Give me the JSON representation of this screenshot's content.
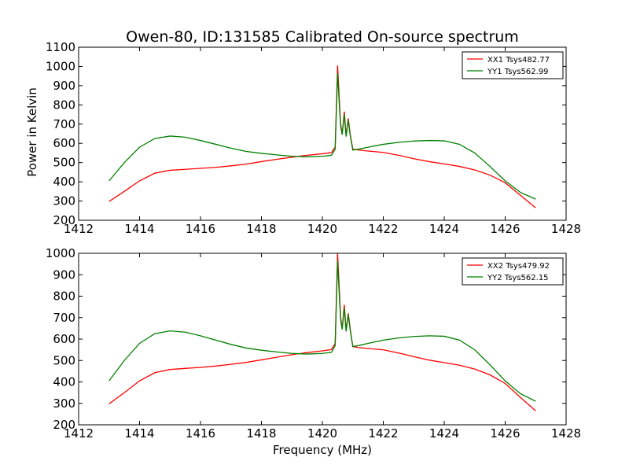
{
  "figure": {
    "title": "Owen-80, ID:131585 Calibrated On-source spectrum",
    "xlabel": "Frequency (MHz)",
    "ylabel": "Power in Kelvin"
  },
  "chart_data": [
    {
      "type": "line",
      "title": "Owen-80, ID:131585 Calibrated On-source spectrum",
      "xlabel": "",
      "ylabel": "Power in Kelvin",
      "xlim": [
        1412,
        1428
      ],
      "ylim": [
        200,
        1100
      ],
      "xticks": [
        1412,
        1414,
        1416,
        1418,
        1420,
        1422,
        1424,
        1426,
        1428
      ],
      "yticks": [
        200,
        300,
        400,
        500,
        600,
        700,
        800,
        900,
        1000,
        1100
      ],
      "grid": false,
      "legend": "top-right",
      "series": [
        {
          "name": "XX1 Tsys482.77",
          "color": "#ff0000",
          "points": [
            [
              1413.0,
              298
            ],
            [
              1413.5,
              350
            ],
            [
              1414.0,
              405
            ],
            [
              1414.5,
              445
            ],
            [
              1415.0,
              460
            ],
            [
              1415.5,
              465
            ],
            [
              1416.0,
              470
            ],
            [
              1416.5,
              475
            ],
            [
              1417.0,
              483
            ],
            [
              1417.5,
              492
            ],
            [
              1418.0,
              505
            ],
            [
              1418.5,
              517
            ],
            [
              1419.0,
              528
            ],
            [
              1419.5,
              538
            ],
            [
              1420.0,
              546
            ],
            [
              1420.3,
              552
            ],
            [
              1420.42,
              580
            ],
            [
              1420.5,
              1005
            ],
            [
              1420.55,
              850
            ],
            [
              1420.6,
              700
            ],
            [
              1420.65,
              650
            ],
            [
              1420.72,
              765
            ],
            [
              1420.78,
              640
            ],
            [
              1420.85,
              730
            ],
            [
              1420.92,
              640
            ],
            [
              1421.0,
              570
            ],
            [
              1421.2,
              565
            ],
            [
              1421.5,
              560
            ],
            [
              1422.0,
              553
            ],
            [
              1422.5,
              538
            ],
            [
              1423.0,
              520
            ],
            [
              1423.5,
              505
            ],
            [
              1424.0,
              493
            ],
            [
              1424.5,
              480
            ],
            [
              1425.0,
              462
            ],
            [
              1425.5,
              435
            ],
            [
              1426.0,
              395
            ],
            [
              1426.5,
              330
            ],
            [
              1427.0,
              265
            ]
          ]
        },
        {
          "name": "YY1 Tsys562.99",
          "color": "#008000",
          "points": [
            [
              1413.0,
              405
            ],
            [
              1413.5,
              500
            ],
            [
              1414.0,
              580
            ],
            [
              1414.5,
              625
            ],
            [
              1415.0,
              638
            ],
            [
              1415.5,
              632
            ],
            [
              1416.0,
              615
            ],
            [
              1416.5,
              595
            ],
            [
              1417.0,
              575
            ],
            [
              1417.5,
              558
            ],
            [
              1418.0,
              548
            ],
            [
              1418.5,
              540
            ],
            [
              1419.0,
              533
            ],
            [
              1419.5,
              530
            ],
            [
              1420.0,
              533
            ],
            [
              1420.3,
              538
            ],
            [
              1420.42,
              570
            ],
            [
              1420.5,
              965
            ],
            [
              1420.55,
              820
            ],
            [
              1420.6,
              690
            ],
            [
              1420.65,
              645
            ],
            [
              1420.72,
              750
            ],
            [
              1420.78,
              635
            ],
            [
              1420.85,
              720
            ],
            [
              1420.92,
              635
            ],
            [
              1421.0,
              565
            ],
            [
              1421.2,
              570
            ],
            [
              1421.5,
              580
            ],
            [
              1422.0,
              595
            ],
            [
              1422.5,
              605
            ],
            [
              1423.0,
              612
            ],
            [
              1423.5,
              615
            ],
            [
              1424.0,
              613
            ],
            [
              1424.5,
              595
            ],
            [
              1425.0,
              550
            ],
            [
              1425.5,
              480
            ],
            [
              1426.0,
              405
            ],
            [
              1426.5,
              345
            ],
            [
              1427.0,
              310
            ]
          ]
        }
      ]
    },
    {
      "type": "line",
      "title": "",
      "xlabel": "Frequency (MHz)",
      "ylabel": "",
      "xlim": [
        1412,
        1428
      ],
      "ylim": [
        200,
        1000
      ],
      "xticks": [
        1412,
        1414,
        1416,
        1418,
        1420,
        1422,
        1424,
        1426,
        1428
      ],
      "yticks": [
        200,
        300,
        400,
        500,
        600,
        700,
        800,
        900,
        1000
      ],
      "grid": false,
      "legend": "top-right",
      "series": [
        {
          "name": "XX2 Tsys479.92",
          "color": "#ff0000",
          "points": [
            [
              1413.0,
              298
            ],
            [
              1413.5,
              350
            ],
            [
              1414.0,
              405
            ],
            [
              1414.5,
              443
            ],
            [
              1415.0,
              458
            ],
            [
              1415.5,
              463
            ],
            [
              1416.0,
              468
            ],
            [
              1416.5,
              474
            ],
            [
              1417.0,
              482
            ],
            [
              1417.5,
              491
            ],
            [
              1418.0,
              503
            ],
            [
              1418.5,
              515
            ],
            [
              1419.0,
              527
            ],
            [
              1419.5,
              537
            ],
            [
              1420.0,
              545
            ],
            [
              1420.3,
              551
            ],
            [
              1420.42,
              580
            ],
            [
              1420.5,
              1000
            ],
            [
              1420.55,
              850
            ],
            [
              1420.6,
              700
            ],
            [
              1420.65,
              650
            ],
            [
              1420.72,
              760
            ],
            [
              1420.78,
              640
            ],
            [
              1420.85,
              720
            ],
            [
              1420.92,
              640
            ],
            [
              1421.0,
              565
            ],
            [
              1421.2,
              560
            ],
            [
              1421.5,
              556
            ],
            [
              1422.0,
              550
            ],
            [
              1422.5,
              535
            ],
            [
              1423.0,
              518
            ],
            [
              1423.5,
              502
            ],
            [
              1424.0,
              490
            ],
            [
              1424.5,
              478
            ],
            [
              1425.0,
              460
            ],
            [
              1425.5,
              433
            ],
            [
              1426.0,
              393
            ],
            [
              1426.5,
              328
            ],
            [
              1427.0,
              265
            ]
          ]
        },
        {
          "name": "YY2 Tsys562.15",
          "color": "#008000",
          "points": [
            [
              1413.0,
              405
            ],
            [
              1413.5,
              500
            ],
            [
              1414.0,
              580
            ],
            [
              1414.5,
              625
            ],
            [
              1415.0,
              638
            ],
            [
              1415.5,
              632
            ],
            [
              1416.0,
              615
            ],
            [
              1416.5,
              595
            ],
            [
              1417.0,
              575
            ],
            [
              1417.5,
              558
            ],
            [
              1418.0,
              548
            ],
            [
              1418.5,
              540
            ],
            [
              1419.0,
              533
            ],
            [
              1419.5,
              530
            ],
            [
              1420.0,
              533
            ],
            [
              1420.3,
              538
            ],
            [
              1420.42,
              570
            ],
            [
              1420.5,
              965
            ],
            [
              1420.55,
              820
            ],
            [
              1420.6,
              690
            ],
            [
              1420.65,
              645
            ],
            [
              1420.72,
              745
            ],
            [
              1420.78,
              635
            ],
            [
              1420.85,
              715
            ],
            [
              1420.92,
              635
            ],
            [
              1421.0,
              565
            ],
            [
              1421.2,
              570
            ],
            [
              1421.5,
              580
            ],
            [
              1422.0,
              595
            ],
            [
              1422.5,
              605
            ],
            [
              1423.0,
              612
            ],
            [
              1423.5,
              615
            ],
            [
              1424.0,
              613
            ],
            [
              1424.5,
              595
            ],
            [
              1425.0,
              550
            ],
            [
              1425.5,
              480
            ],
            [
              1426.0,
              405
            ],
            [
              1426.5,
              345
            ],
            [
              1427.0,
              310
            ]
          ]
        }
      ]
    }
  ]
}
